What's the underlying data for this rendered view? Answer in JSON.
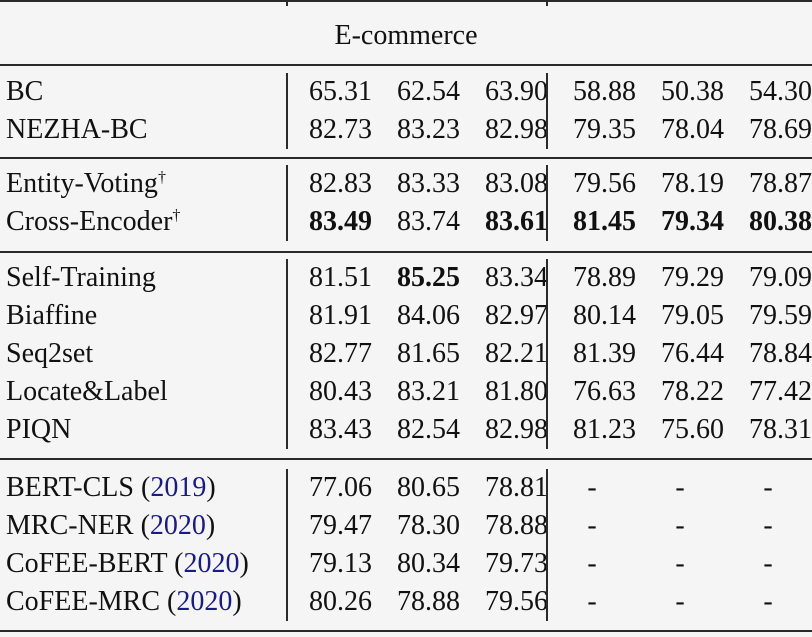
{
  "header": "E-commerce",
  "groups": [
    {
      "rows": [
        {
          "name": "BC",
          "values": [
            "65.31",
            "62.54",
            "63.90",
            "58.88",
            "50.38",
            "54.30"
          ],
          "bold": []
        },
        {
          "name": "NEZHA-BC",
          "values": [
            "82.73",
            "83.23",
            "82.98",
            "79.35",
            "78.04",
            "78.69"
          ],
          "bold": []
        }
      ]
    },
    {
      "rows": [
        {
          "name": "Entity-Voting",
          "dagger": "†",
          "values": [
            "82.83",
            "83.33",
            "83.08",
            "79.56",
            "78.19",
            "78.87"
          ],
          "bold": []
        },
        {
          "name": "Cross-Encoder",
          "dagger": "†",
          "values": [
            "83.49",
            "83.74",
            "83.61",
            "81.45",
            "79.34",
            "80.38"
          ],
          "bold": [
            0,
            2,
            3,
            4,
            5
          ]
        }
      ]
    },
    {
      "rows": [
        {
          "name": "Self-Training",
          "values": [
            "81.51",
            "85.25",
            "83.34",
            "78.89",
            "79.29",
            "79.09"
          ],
          "bold": [
            1
          ]
        },
        {
          "name": "Biaffine",
          "values": [
            "81.91",
            "84.06",
            "82.97",
            "80.14",
            "79.05",
            "79.59"
          ],
          "bold": []
        },
        {
          "name": "Seq2set",
          "values": [
            "82.77",
            "81.65",
            "82.21",
            "81.39",
            "76.44",
            "78.84"
          ],
          "bold": []
        },
        {
          "name": "Locate&Label",
          "values": [
            "80.43",
            "83.21",
            "81.80",
            "76.63",
            "78.22",
            "77.42"
          ],
          "bold": []
        },
        {
          "name": "PIQN",
          "values": [
            "83.43",
            "82.54",
            "82.98",
            "81.23",
            "75.60",
            "78.31"
          ],
          "bold": []
        }
      ]
    },
    {
      "rows": [
        {
          "name": "BERT-CLS",
          "year": "2019",
          "values": [
            "77.06",
            "80.65",
            "78.81",
            "-",
            "-",
            "-"
          ],
          "bold": []
        },
        {
          "name": "MRC-NER",
          "year": "2020",
          "values": [
            "79.47",
            "78.30",
            "78.88",
            "-",
            "-",
            "-"
          ],
          "bold": []
        },
        {
          "name": "CoFEE-BERT",
          "year": "2020",
          "values": [
            "79.13",
            "80.34",
            "79.73",
            "-",
            "-",
            "-"
          ],
          "bold": []
        },
        {
          "name": "CoFEE-MRC",
          "year": "2020",
          "values": [
            "80.26",
            "78.88",
            "79.56",
            "-",
            "-",
            "-"
          ],
          "bold": []
        }
      ]
    }
  ]
}
